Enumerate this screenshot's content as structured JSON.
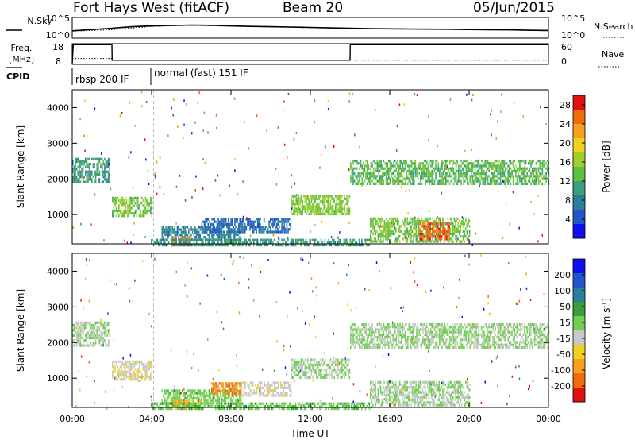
{
  "header": {
    "station": "Fort Hays West (fitACF)",
    "beam": "Beam 20",
    "date": "05/Jun/2015"
  },
  "labels": {
    "nsky": "N.Sky",
    "nsearch": "N.Search",
    "freq": "Freq.",
    "freq_unit": "[MHz]",
    "nave": "Nave",
    "cpid": "CPID",
    "cpid_mode_1": "rbsp 200 IF",
    "cpid_mode_2": "normal (fast) 151 IF",
    "xlabel": "Time UT"
  },
  "noise_panel": {
    "left_ticks": [
      "10^5",
      "10^0"
    ],
    "right_ticks": [
      "10^5",
      "10^0"
    ]
  },
  "freq_panel": {
    "left_ticks": [
      "18",
      "8"
    ],
    "right_ticks": [
      "60",
      "0"
    ]
  },
  "chart_data": [
    {
      "type": "line",
      "panel": "noise",
      "yscale": "log",
      "ylim": [
        1,
        100000
      ],
      "xlim": [
        0,
        24
      ],
      "series": [
        {
          "name": "N.Sky",
          "style": "solid",
          "x": [
            0,
            1,
            2,
            3,
            4,
            5,
            6,
            7,
            8,
            9,
            10,
            11,
            12,
            13,
            14,
            15,
            16,
            17,
            18,
            19,
            20,
            21,
            22,
            23,
            24
          ],
          "values": [
            60,
            120,
            250,
            600,
            900,
            1200,
            1500,
            1300,
            900,
            700,
            600,
            500,
            400,
            300,
            250,
            200,
            180,
            160,
            150,
            140,
            120,
            110,
            100,
            80,
            70
          ]
        },
        {
          "name": "N.Search",
          "style": "dotted",
          "x": [
            0,
            2,
            4,
            6,
            8,
            10,
            12,
            14,
            16,
            18,
            20,
            22,
            24
          ],
          "values": [
            50,
            110,
            700,
            1300,
            800,
            550,
            350,
            220,
            170,
            140,
            110,
            90,
            60
          ]
        }
      ]
    },
    {
      "type": "line",
      "panel": "frequency",
      "xlim": [
        0,
        24
      ],
      "series": [
        {
          "name": "Freq.",
          "style": "solid",
          "axis": "left",
          "ylim": [
            8,
            18
          ],
          "x": [
            0,
            0.05,
            2,
            2.01,
            14,
            14.01,
            24
          ],
          "values": [
            8,
            17.5,
            17.5,
            10,
            10,
            17.5,
            17.5
          ]
        },
        {
          "name": "Nave",
          "style": "dotted",
          "axis": "right",
          "ylim": [
            0,
            60
          ],
          "x": [
            0,
            2,
            2.01,
            24
          ],
          "values": [
            17,
            17,
            12,
            12
          ]
        }
      ]
    },
    {
      "type": "heatmap",
      "panel": "power",
      "title": "",
      "xlabel": "",
      "ylabel": "Slant Range [km]",
      "xlim": [
        0,
        24
      ],
      "ylim": [
        180,
        4500
      ],
      "x_ticks": [
        "00:00",
        "04:00",
        "08:00",
        "12:00",
        "16:00",
        "20:00",
        "00:00"
      ],
      "y_ticks": [
        1000,
        2000,
        3000,
        4000
      ],
      "colorbar": {
        "label": "Power [dB]",
        "range": [
          0,
          30
        ],
        "ticks": [
          4,
          8,
          12,
          16,
          20,
          24,
          28
        ],
        "colors": [
          "#1010ee",
          "#2255cc",
          "#2a7f9f",
          "#3a9f7a",
          "#5fbf3f",
          "#9fcf2f",
          "#f0d020",
          "#f7a020",
          "#f06a10",
          "#e01010"
        ]
      },
      "regions": [
        {
          "t0": 0.0,
          "t1": 1.9,
          "r0": 1950,
          "r1": 2600,
          "value": 10
        },
        {
          "t0": 2.0,
          "t1": 4.0,
          "r0": 1000,
          "r1": 1500,
          "value": 14
        },
        {
          "t0": 4.5,
          "t1": 8.5,
          "r0": 330,
          "r1": 700,
          "value": 8
        },
        {
          "t0": 5.0,
          "t1": 6.0,
          "r0": 180,
          "r1": 420,
          "value": 24
        },
        {
          "t0": 6.5,
          "t1": 11.0,
          "r0": 550,
          "r1": 950,
          "value": 6
        },
        {
          "t0": 11.0,
          "t1": 14.0,
          "r0": 1050,
          "r1": 1550,
          "value": 15
        },
        {
          "t0": 14.0,
          "t1": 24.0,
          "r0": 1900,
          "r1": 2600,
          "value": 13
        },
        {
          "t0": 15.0,
          "t1": 20.0,
          "r0": 280,
          "r1": 950,
          "value": 14
        },
        {
          "t0": 17.5,
          "t1": 19.0,
          "r0": 350,
          "r1": 800,
          "value": 26
        },
        {
          "t0": 4.0,
          "t1": 15.0,
          "r0": 180,
          "r1": 350,
          "value": 10
        }
      ]
    },
    {
      "type": "heatmap",
      "panel": "velocity",
      "title": "",
      "xlabel": "Time UT",
      "ylabel": "Slant Range [km]",
      "xlim": [
        0,
        24
      ],
      "ylim": [
        180,
        4500
      ],
      "x_ticks": [
        "00:00",
        "04:00",
        "08:00",
        "12:00",
        "16:00",
        "20:00",
        "00:00"
      ],
      "y_ticks": [
        1000,
        2000,
        3000,
        4000
      ],
      "colorbar": {
        "label": "Velocity [m s-1]",
        "range": [
          -250,
          250
        ],
        "ticks": [
          "200",
          "100",
          "50",
          "15",
          "-15",
          "-50",
          "-100",
          "-200"
        ],
        "colors": [
          "#e01010",
          "#f06a10",
          "#f7a020",
          "#f0d020",
          "#c8c8c8",
          "#6fcf4f",
          "#3a9f3a",
          "#2a7f9f",
          "#2255cc",
          "#1010ee"
        ]
      },
      "regions": [
        {
          "t0": 0.0,
          "t1": 1.9,
          "r0": 1950,
          "r1": 2600,
          "value": -5
        },
        {
          "t0": 2.0,
          "t1": 4.0,
          "r0": 1000,
          "r1": 1500,
          "value": -40
        },
        {
          "t0": 4.5,
          "t1": 8.5,
          "r0": 330,
          "r1": 700,
          "value": 30
        },
        {
          "t0": 5.0,
          "t1": 6.5,
          "r0": 180,
          "r1": 420,
          "value": -120
        },
        {
          "t0": 7.0,
          "t1": 8.5,
          "r0": 600,
          "r1": 900,
          "value": -140
        },
        {
          "t0": 8.5,
          "t1": 11.0,
          "r0": 550,
          "r1": 950,
          "value": -30
        },
        {
          "t0": 11.0,
          "t1": 14.0,
          "r0": 1050,
          "r1": 1550,
          "value": 0
        },
        {
          "t0": 14.0,
          "t1": 24.0,
          "r0": 1900,
          "r1": 2600,
          "value": 2
        },
        {
          "t0": 15.0,
          "t1": 20.0,
          "r0": 280,
          "r1": 950,
          "value": 0
        },
        {
          "t0": 4.0,
          "t1": 15.0,
          "r0": 180,
          "r1": 350,
          "value": 40
        }
      ]
    }
  ]
}
